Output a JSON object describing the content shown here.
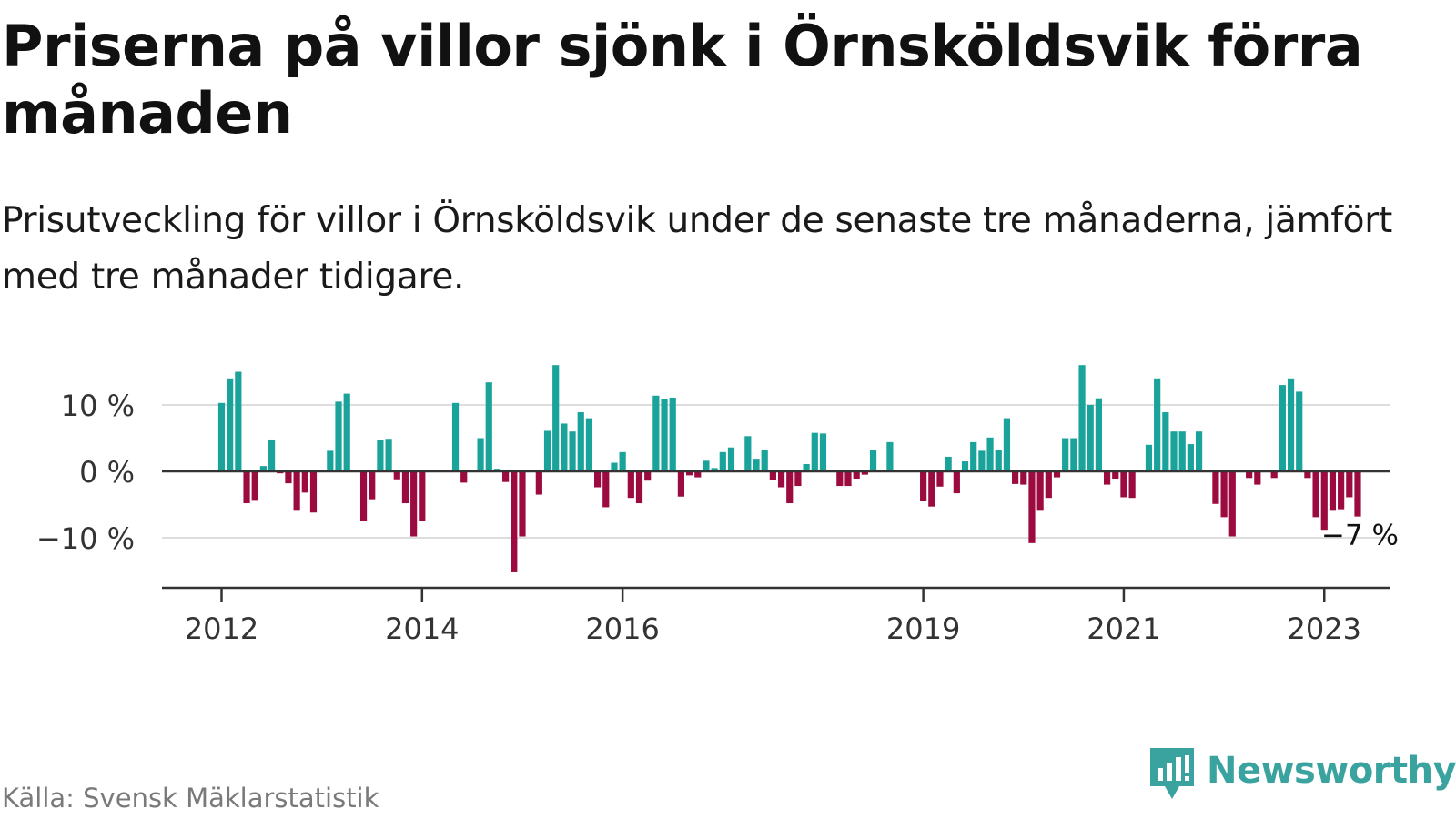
{
  "title": "Priserna på villor sjönk i Örnsköldsvik förra månaden",
  "subtitle": "Prisutveckling för villor i Örnsköldsvik under de senaste tre månaderna, jämfört med tre månader tidigare.",
  "source": "Källa: Svensk Mäklarstatistik",
  "brand": {
    "name": "Newsworthy",
    "icon": "newsworthy-logo-icon"
  },
  "colors": {
    "positive": "#1aa39a",
    "negative": "#9c0b3f",
    "grid": "#dddddd",
    "axis": "#333333",
    "brand": "#3aa3a0"
  },
  "chart_data": {
    "type": "bar",
    "unit": "%",
    "ylim": [
      -17,
      17
    ],
    "yticks": [
      {
        "value": 10,
        "label": "10 %"
      },
      {
        "value": 0,
        "label": "0 %"
      },
      {
        "value": -10,
        "label": "−10 %"
      }
    ],
    "xticks": [
      {
        "x": 2012.0,
        "label": "2012"
      },
      {
        "x": 2014.0,
        "label": "2014"
      },
      {
        "x": 2016.0,
        "label": "2016"
      },
      {
        "x": 2019.0,
        "label": "2019"
      },
      {
        "x": 2021.0,
        "label": "2021"
      },
      {
        "x": 2023.0,
        "label": "2023"
      }
    ],
    "grid": true,
    "annotation": {
      "label": "−7 %",
      "target": "last"
    },
    "start": "2012-01",
    "series": [
      {
        "values": [
          10.3,
          14,
          15,
          -4.8,
          -4.3,
          0.8,
          4.8,
          -0.3,
          -1.8,
          -5.8,
          -3.2,
          -6.2,
          0,
          3.1,
          10.5,
          11.7,
          0,
          -7.4,
          -4.2,
          4.7,
          4.9,
          -1.2,
          -4.8,
          -9.8,
          -7.4,
          0,
          0,
          0,
          10.3,
          -1.7,
          0,
          5,
          13.4,
          0.4,
          -1.6,
          -15.2,
          -9.8,
          0,
          -3.5,
          6.1,
          16,
          7.2,
          6,
          8.9,
          8,
          -2.4,
          -5.4,
          1.3,
          2.9,
          -4,
          -4.8,
          -1.4,
          11.4,
          10.9,
          11.1,
          -3.8,
          -0.6,
          -0.9,
          1.6,
          0.5,
          2.9,
          3.6,
          0,
          5.3,
          1.9,
          3.2,
          -1.3,
          -2.4,
          -4.8,
          -2.2,
          1.1,
          5.8,
          5.7,
          0,
          -2.2,
          -2.2,
          -1.1,
          -0.5,
          3.2,
          0,
          4.4,
          0,
          0,
          0,
          -4.5,
          -5.3,
          -2.3,
          2.2,
          -3.3,
          1.5,
          4.4,
          3.1,
          5.1,
          3.2,
          8,
          -1.9,
          -2,
          -10.8,
          -5.8,
          -4,
          -0.9,
          5,
          5,
          16,
          10,
          11,
          -2,
          -1.1,
          -3.9,
          -4,
          0,
          4,
          14,
          8.9,
          6,
          6,
          4.1,
          6,
          0,
          -4.9,
          -6.9,
          -9.8,
          0,
          -1,
          -2,
          0,
          -1,
          13,
          14,
          12,
          -1,
          -6.9,
          -8.8,
          -5.8,
          -5.7,
          -3.9,
          -6.8
        ]
      }
    ]
  }
}
